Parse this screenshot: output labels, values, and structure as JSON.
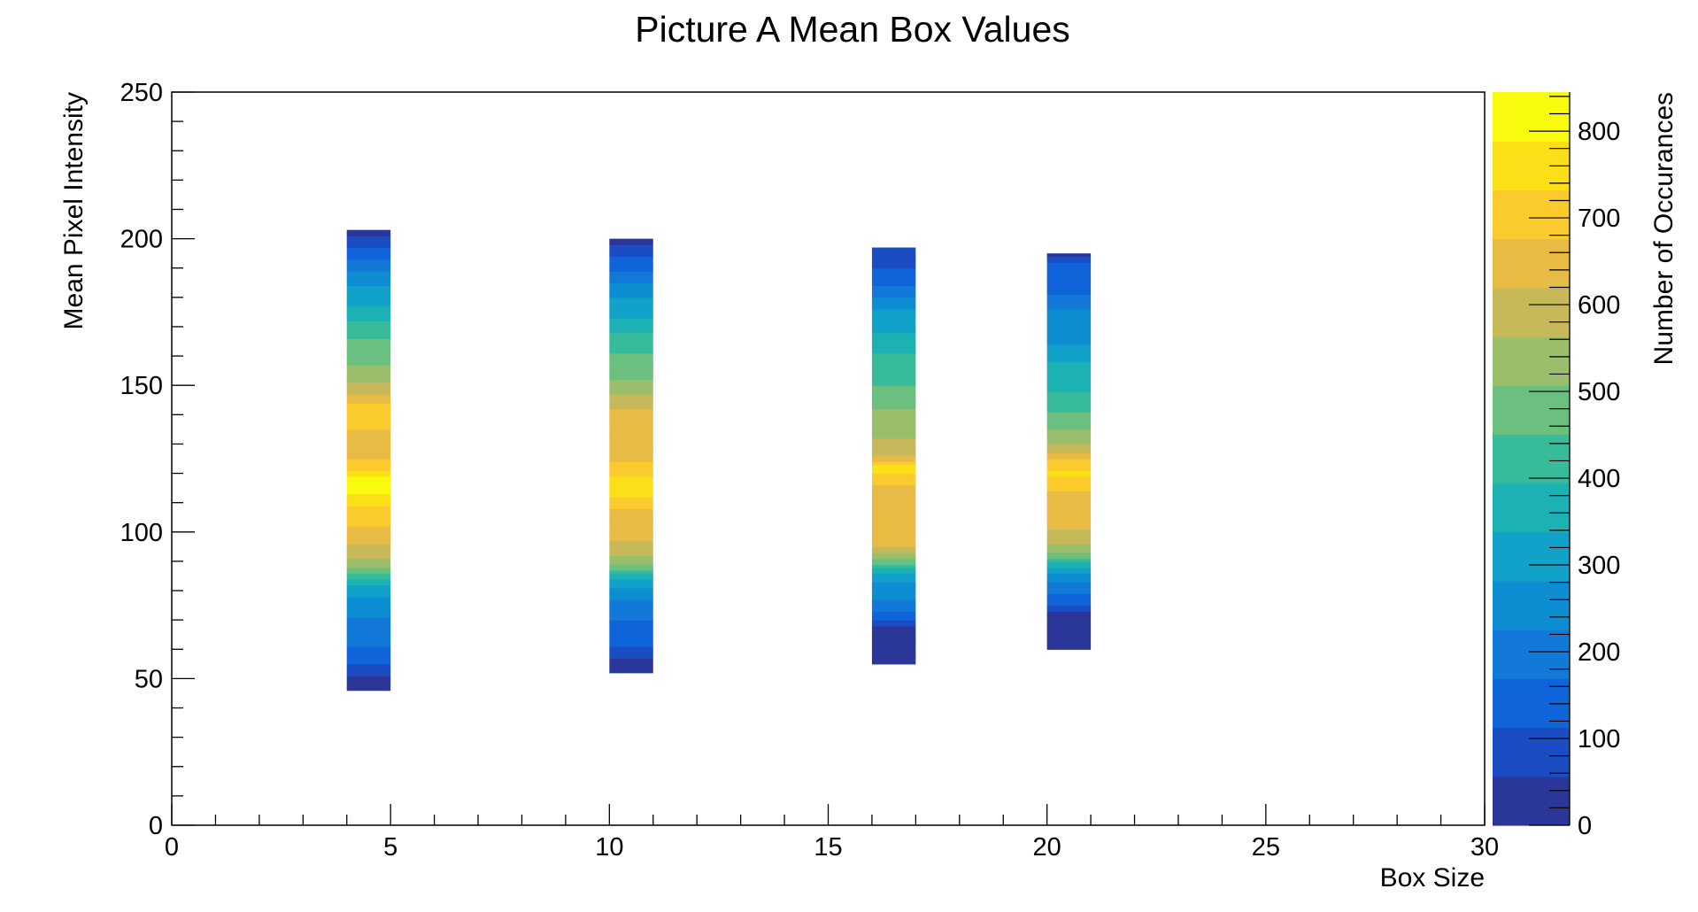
{
  "chart_data": {
    "type": "heatmap",
    "title": "Picture A Mean Box Values",
    "xlabel": "Box Size",
    "ylabel": "Mean Pixel Intensity",
    "zlabel": "Number of Occurances",
    "xlim": [
      0,
      30
    ],
    "ylim": [
      0,
      250
    ],
    "zlim": [
      0,
      845
    ],
    "x_ticks": [
      0,
      5,
      10,
      15,
      20,
      25,
      30
    ],
    "y_ticks": [
      0,
      50,
      100,
      150,
      200,
      250
    ],
    "z_ticks": [
      0,
      100,
      200,
      300,
      400,
      500,
      600,
      700,
      800
    ],
    "grid": false,
    "colormap": [
      "#2b3798",
      "#1a4cc4",
      "#1064da",
      "#1279d8",
      "#0d8dd2",
      "#10a2c8",
      "#1cb1b2",
      "#38bb9a",
      "#6bc07f",
      "#9bbe6a",
      "#c7b95a",
      "#e8bb45",
      "#fbca2c",
      "#fbe018",
      "#f9fb0e"
    ],
    "columns": [
      {
        "x_range": [
          4,
          5
        ],
        "y_range": [
          46,
          203
        ],
        "profile": [
          [
            46,
            0
          ],
          [
            51,
            60
          ],
          [
            58,
            150
          ],
          [
            66,
            200
          ],
          [
            74,
            240
          ],
          [
            80,
            300
          ],
          [
            84,
            380
          ],
          [
            88,
            520
          ],
          [
            94,
            600
          ],
          [
            100,
            660
          ],
          [
            108,
            720
          ],
          [
            114,
            800
          ],
          [
            118,
            840
          ],
          [
            122,
            700
          ],
          [
            130,
            640
          ],
          [
            138,
            700
          ],
          [
            142,
            720
          ],
          [
            148,
            600
          ],
          [
            155,
            520
          ],
          [
            162,
            480
          ],
          [
            170,
            420
          ],
          [
            178,
            330
          ],
          [
            186,
            260
          ],
          [
            194,
            160
          ],
          [
            199,
            90
          ],
          [
            203,
            20
          ]
        ]
      },
      {
        "x_range": [
          10,
          11
        ],
        "y_range": [
          52,
          200
        ],
        "profile": [
          [
            52,
            0
          ],
          [
            57,
            50
          ],
          [
            62,
            130
          ],
          [
            68,
            150
          ],
          [
            74,
            200
          ],
          [
            80,
            260
          ],
          [
            84,
            330
          ],
          [
            88,
            480
          ],
          [
            94,
            600
          ],
          [
            100,
            640
          ],
          [
            106,
            640
          ],
          [
            110,
            700
          ],
          [
            114,
            760
          ],
          [
            118,
            740
          ],
          [
            124,
            680
          ],
          [
            130,
            620
          ],
          [
            136,
            640
          ],
          [
            142,
            620
          ],
          [
            150,
            520
          ],
          [
            158,
            470
          ],
          [
            166,
            420
          ],
          [
            174,
            330
          ],
          [
            182,
            260
          ],
          [
            190,
            160
          ],
          [
            196,
            90
          ],
          [
            200,
            20
          ]
        ]
      },
      {
        "x_range": [
          16,
          17
        ],
        "y_range": [
          55,
          197
        ],
        "profile": [
          [
            55,
            10
          ],
          [
            62,
            20
          ],
          [
            67,
            30
          ],
          [
            70,
            120
          ],
          [
            76,
            220
          ],
          [
            82,
            260
          ],
          [
            87,
            360
          ],
          [
            90,
            480
          ],
          [
            95,
            620
          ],
          [
            100,
            620
          ],
          [
            106,
            640
          ],
          [
            112,
            620
          ],
          [
            118,
            700
          ],
          [
            122,
            760
          ],
          [
            126,
            620
          ],
          [
            132,
            560
          ],
          [
            138,
            540
          ],
          [
            146,
            480
          ],
          [
            152,
            440
          ],
          [
            158,
            420
          ],
          [
            164,
            360
          ],
          [
            170,
            330
          ],
          [
            176,
            280
          ],
          [
            182,
            200
          ],
          [
            188,
            120
          ],
          [
            194,
            100
          ],
          [
            197,
            90
          ]
        ]
      },
      {
        "x_range": [
          20,
          21
        ],
        "y_range": [
          60,
          195
        ],
        "profile": [
          [
            60,
            10
          ],
          [
            66,
            20
          ],
          [
            72,
            30
          ],
          [
            75,
            120
          ],
          [
            80,
            180
          ],
          [
            84,
            240
          ],
          [
            88,
            330
          ],
          [
            92,
            480
          ],
          [
            98,
            600
          ],
          [
            104,
            640
          ],
          [
            110,
            620
          ],
          [
            116,
            700
          ],
          [
            120,
            740
          ],
          [
            124,
            700
          ],
          [
            128,
            580
          ],
          [
            134,
            520
          ],
          [
            140,
            460
          ],
          [
            146,
            400
          ],
          [
            152,
            380
          ],
          [
            158,
            340
          ],
          [
            164,
            280
          ],
          [
            170,
            260
          ],
          [
            176,
            230
          ],
          [
            182,
            160
          ],
          [
            188,
            120
          ],
          [
            192,
            120
          ],
          [
            195,
            40
          ]
        ]
      }
    ]
  }
}
